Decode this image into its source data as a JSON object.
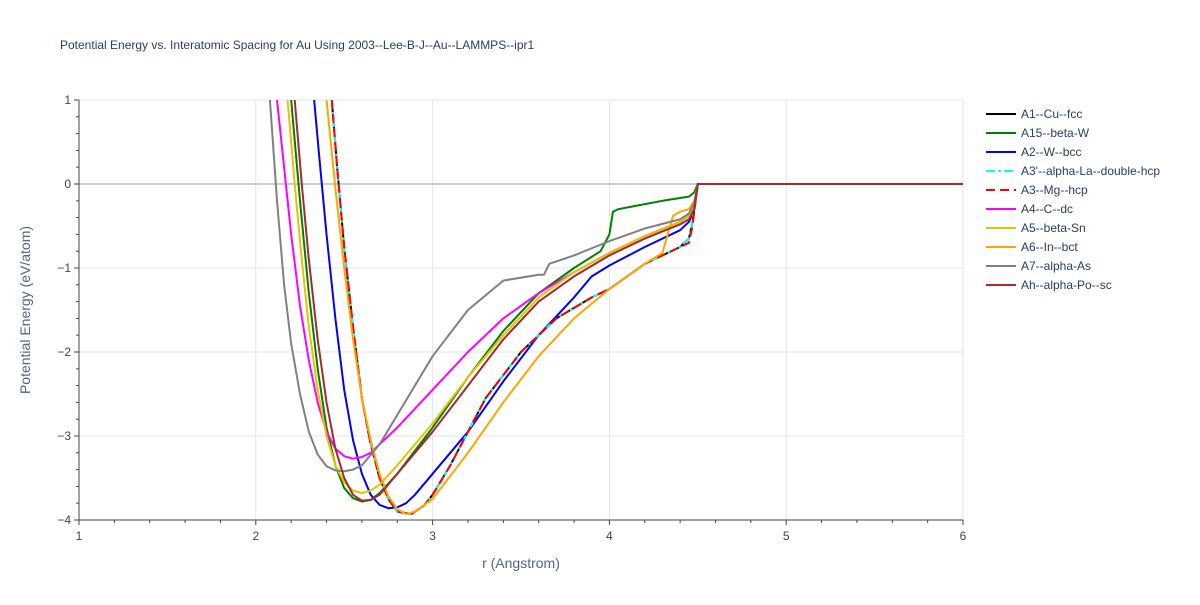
{
  "chart_data": {
    "type": "line",
    "title": "Potential Energy vs. Interatomic Spacing for Au Using 2003--Lee-B-J--Au--LAMMPS--ipr1",
    "xlabel": "r (Angstrom)",
    "ylabel": "Potential Energy (eV/atom)",
    "xlim": [
      1,
      6
    ],
    "ylim": [
      -4,
      1
    ],
    "xticks": [
      1,
      2,
      3,
      4,
      5,
      6
    ],
    "yticks": [
      1,
      0,
      -1,
      -2,
      -3,
      -4
    ],
    "xtick_labels": [
      "1",
      "2",
      "3",
      "4",
      "5",
      "6"
    ],
    "ytick_labels": [
      "1",
      "0",
      "−1",
      "−2",
      "−3",
      "−4"
    ],
    "grid": true,
    "legend_position": "right",
    "series": [
      {
        "name": "A1--Cu--fcc",
        "color": "#000000",
        "dash": "solid",
        "x": [
          2.43,
          2.46,
          2.5,
          2.55,
          2.6,
          2.65,
          2.7,
          2.75,
          2.8,
          2.88,
          2.95,
          3.0,
          3.1,
          3.2,
          3.3,
          3.5,
          3.7,
          3.9,
          4.0,
          4.1,
          4.2,
          4.3,
          4.4,
          4.45,
          4.47,
          4.5,
          4.6,
          5.0,
          6.0
        ],
        "y": [
          1.0,
          0.2,
          -0.75,
          -1.7,
          -2.55,
          -3.1,
          -3.5,
          -3.75,
          -3.9,
          -3.93,
          -3.83,
          -3.7,
          -3.35,
          -2.95,
          -2.55,
          -2.0,
          -1.6,
          -1.35,
          -1.25,
          -1.1,
          -0.95,
          -0.85,
          -0.75,
          -0.65,
          -0.45,
          0.0,
          0.0,
          0.0,
          0.0
        ]
      },
      {
        "name": "A15--beta-W",
        "color": "#008000",
        "dash": "solid",
        "x": [
          2.2,
          2.25,
          2.3,
          2.35,
          2.4,
          2.45,
          2.5,
          2.55,
          2.6,
          2.65,
          2.7,
          2.8,
          3.0,
          3.2,
          3.4,
          3.6,
          3.8,
          3.95,
          4.0,
          4.02,
          4.05,
          4.1,
          4.2,
          4.3,
          4.45,
          4.48,
          4.5,
          5.0,
          6.0
        ],
        "y": [
          1.0,
          -0.2,
          -1.3,
          -2.2,
          -2.9,
          -3.35,
          -3.62,
          -3.74,
          -3.78,
          -3.76,
          -3.68,
          -3.45,
          -2.9,
          -2.3,
          -1.75,
          -1.3,
          -1.0,
          -0.8,
          -0.6,
          -0.33,
          -0.3,
          -0.28,
          -0.24,
          -0.2,
          -0.15,
          -0.1,
          0.0,
          0.0,
          0.0
        ]
      },
      {
        "name": "A2--W--bcc",
        "color": "#0000ff",
        "dash": "solid",
        "x": [
          2.33,
          2.36,
          2.4,
          2.45,
          2.5,
          2.55,
          2.6,
          2.65,
          2.7,
          2.75,
          2.8,
          2.85,
          2.9,
          3.0,
          3.2,
          3.4,
          3.6,
          3.8,
          3.9,
          4.0,
          4.2,
          4.4,
          4.45,
          4.48,
          4.5,
          5.0,
          6.0
        ],
        "y": [
          1.0,
          0.3,
          -0.6,
          -1.6,
          -2.45,
          -3.05,
          -3.45,
          -3.7,
          -3.82,
          -3.86,
          -3.85,
          -3.8,
          -3.7,
          -3.45,
          -2.95,
          -2.35,
          -1.8,
          -1.35,
          -1.1,
          -0.97,
          -0.75,
          -0.55,
          -0.45,
          -0.3,
          0.0,
          0.0,
          0.0
        ]
      },
      {
        "name": "A3'--alpha-La--double-hcp",
        "color": "#00ffff",
        "dash": "dashdot",
        "x": [
          2.43,
          2.46,
          2.5,
          2.55,
          2.6,
          2.65,
          2.7,
          2.75,
          2.8,
          2.88,
          2.95,
          3.0,
          3.1,
          3.2,
          3.3,
          3.5,
          3.7,
          3.9,
          4.0,
          4.1,
          4.2,
          4.3,
          4.4,
          4.45,
          4.47,
          4.5,
          4.6,
          5.0,
          6.0
        ],
        "y": [
          1.0,
          0.2,
          -0.75,
          -1.7,
          -2.55,
          -3.1,
          -3.5,
          -3.75,
          -3.9,
          -3.93,
          -3.83,
          -3.7,
          -3.35,
          -2.95,
          -2.55,
          -2.0,
          -1.6,
          -1.35,
          -1.25,
          -1.1,
          -0.95,
          -0.85,
          -0.75,
          -0.65,
          -0.45,
          0.0,
          0.0,
          0.0,
          0.0
        ]
      },
      {
        "name": "A3--Mg--hcp",
        "color": "#ff0000",
        "dash": "dash",
        "x": [
          2.43,
          2.46,
          2.5,
          2.55,
          2.6,
          2.65,
          2.7,
          2.75,
          2.8,
          2.88,
          2.95,
          3.0,
          3.1,
          3.2,
          3.3,
          3.5,
          3.7,
          3.9,
          4.0,
          4.1,
          4.2,
          4.3,
          4.4,
          4.45,
          4.47,
          4.5,
          4.6,
          5.0,
          6.0
        ],
        "y": [
          1.0,
          0.2,
          -0.75,
          -1.7,
          -2.55,
          -3.1,
          -3.5,
          -3.75,
          -3.9,
          -3.93,
          -3.83,
          -3.7,
          -3.35,
          -2.95,
          -2.55,
          -2.0,
          -1.6,
          -1.35,
          -1.25,
          -1.1,
          -0.95,
          -0.85,
          -0.75,
          -0.7,
          -0.5,
          0.0,
          0.0,
          0.0,
          0.0
        ]
      },
      {
        "name": "A4--C--dc",
        "color": "#ff00ff",
        "dash": "solid",
        "x": [
          2.12,
          2.15,
          2.2,
          2.25,
          2.3,
          2.35,
          2.4,
          2.45,
          2.5,
          2.55,
          2.6,
          2.65,
          2.7,
          2.8,
          3.0,
          3.2,
          3.4,
          3.6,
          3.8,
          4.0,
          4.2,
          4.4,
          4.45,
          4.48,
          4.5,
          5.0,
          6.0
        ],
        "y": [
          1.0,
          0.4,
          -0.6,
          -1.45,
          -2.1,
          -2.6,
          -2.95,
          -3.15,
          -3.24,
          -3.27,
          -3.25,
          -3.2,
          -3.1,
          -2.9,
          -2.45,
          -2.0,
          -1.6,
          -1.3,
          -1.05,
          -0.82,
          -0.62,
          -0.45,
          -0.38,
          -0.25,
          0.0,
          0.0,
          0.0
        ]
      },
      {
        "name": "A5--beta-Sn",
        "color": "#e6c200",
        "dash": "solid",
        "x": [
          2.18,
          2.22,
          2.26,
          2.3,
          2.35,
          2.4,
          2.45,
          2.5,
          2.55,
          2.6,
          2.65,
          2.7,
          2.8,
          3.0,
          3.2,
          3.4,
          3.6,
          3.8,
          4.0,
          4.2,
          4.4,
          4.45,
          4.48,
          4.5,
          5.0,
          6.0
        ],
        "y": [
          1.0,
          0.0,
          -0.9,
          -1.7,
          -2.45,
          -3.0,
          -3.35,
          -3.55,
          -3.65,
          -3.68,
          -3.65,
          -3.58,
          -3.35,
          -2.85,
          -2.3,
          -1.8,
          -1.35,
          -1.05,
          -0.82,
          -0.62,
          -0.45,
          -0.38,
          -0.25,
          0.0,
          0.0,
          0.0
        ]
      },
      {
        "name": "A6--In--bct",
        "color": "#ffa500",
        "dash": "solid",
        "x": [
          2.4,
          2.45,
          2.5,
          2.55,
          2.6,
          2.65,
          2.7,
          2.75,
          2.8,
          2.85,
          2.9,
          3.0,
          3.2,
          3.4,
          3.6,
          3.8,
          4.0,
          4.2,
          4.3,
          4.33,
          4.36,
          4.4,
          4.45,
          4.48,
          4.5,
          5.0,
          6.0
        ],
        "y": [
          1.0,
          -0.05,
          -1.0,
          -1.85,
          -2.55,
          -3.05,
          -3.45,
          -3.72,
          -3.87,
          -3.93,
          -3.9,
          -3.75,
          -3.2,
          -2.6,
          -2.05,
          -1.6,
          -1.25,
          -0.95,
          -0.82,
          -0.6,
          -0.38,
          -0.33,
          -0.3,
          -0.2,
          0.0,
          0.0,
          0.0
        ]
      },
      {
        "name": "A7--alpha-As",
        "color": "#808080",
        "dash": "solid",
        "x": [
          2.08,
          2.12,
          2.16,
          2.2,
          2.25,
          2.3,
          2.35,
          2.4,
          2.45,
          2.5,
          2.55,
          2.6,
          2.7,
          2.8,
          3.0,
          3.2,
          3.4,
          3.6,
          3.63,
          3.66,
          3.8,
          4.0,
          4.2,
          4.4,
          4.45,
          4.48,
          4.5,
          5.0,
          6.0
        ],
        "y": [
          1.0,
          -0.2,
          -1.2,
          -1.9,
          -2.5,
          -2.95,
          -3.22,
          -3.36,
          -3.41,
          -3.42,
          -3.4,
          -3.35,
          -3.1,
          -2.75,
          -2.05,
          -1.5,
          -1.15,
          -1.08,
          -1.08,
          -0.95,
          -0.85,
          -0.68,
          -0.53,
          -0.42,
          -0.35,
          -0.22,
          0.0,
          0.0,
          0.0
        ]
      },
      {
        "name": "Ah--alpha-Po--sc",
        "color": "#a52a2a",
        "dash": "solid",
        "x": [
          2.22,
          2.26,
          2.3,
          2.35,
          2.4,
          2.45,
          2.5,
          2.55,
          2.6,
          2.65,
          2.7,
          2.8,
          3.0,
          3.2,
          3.4,
          3.6,
          3.8,
          4.0,
          4.2,
          4.4,
          4.45,
          4.48,
          4.5,
          5.0,
          6.0
        ],
        "y": [
          1.0,
          0.0,
          -0.9,
          -1.85,
          -2.6,
          -3.15,
          -3.5,
          -3.7,
          -3.77,
          -3.76,
          -3.7,
          -3.45,
          -2.95,
          -2.4,
          -1.85,
          -1.4,
          -1.1,
          -0.85,
          -0.65,
          -0.48,
          -0.42,
          -0.3,
          0.0,
          0.0,
          0.0
        ]
      }
    ]
  }
}
